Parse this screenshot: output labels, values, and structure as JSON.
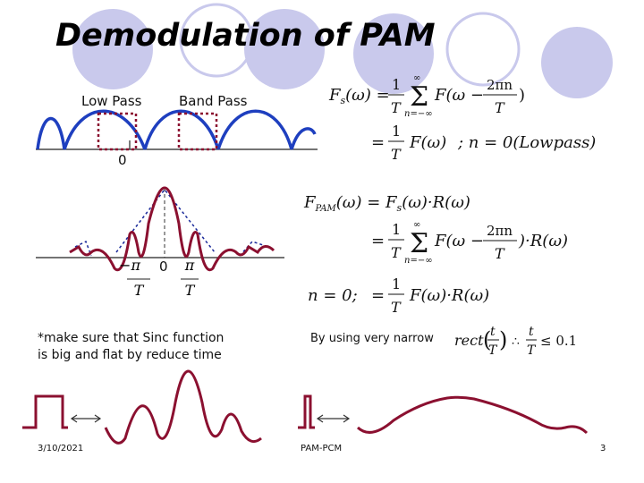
{
  "slide": {
    "title": "Demodulation of PAM",
    "labels": {
      "low_pass": "Low Pass",
      "band_pass": "Band Pass",
      "zero_top": "0",
      "zero_middle": "0"
    },
    "note": {
      "line1": "*make sure that Sinc function",
      "line2": "is big and flat by reduce time"
    },
    "narrow_text": "By using very narrow",
    "footer": {
      "date": "3/10/2021",
      "center": "PAM-PCM",
      "page": "3"
    },
    "colors": {
      "accent_circle": "#c9c9ec",
      "spectrum_blue": "#1e3fbf",
      "dark_red": "#8b1030",
      "dashed_blue": "#1a2a9a"
    }
  }
}
